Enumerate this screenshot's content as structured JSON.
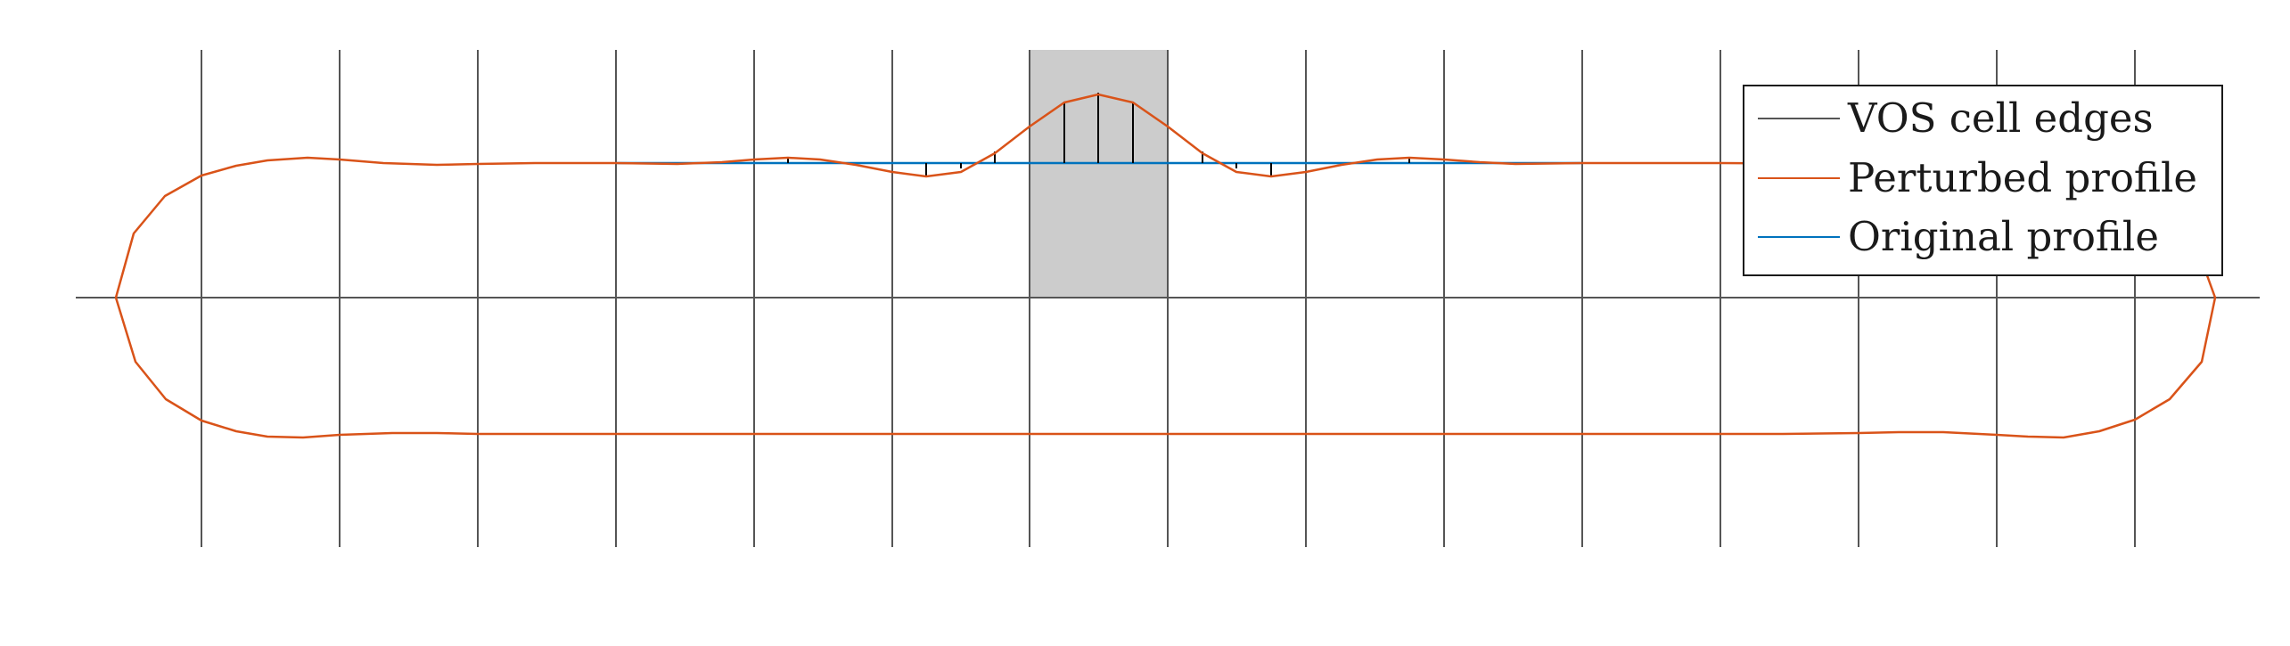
{
  "legend": {
    "entries": [
      {
        "label": "VOS cell edges",
        "color": "#555555"
      },
      {
        "label": "Perturbed profile",
        "color": "#d95319"
      },
      {
        "label": "Original profile",
        "color": "#0072bd"
      }
    ]
  },
  "colors": {
    "grid": "#555555",
    "perturbed": "#d95319",
    "original": "#0072bd",
    "highlight_cell": "#cccccc",
    "markers": "#000000",
    "background": "#ffffff"
  }
}
